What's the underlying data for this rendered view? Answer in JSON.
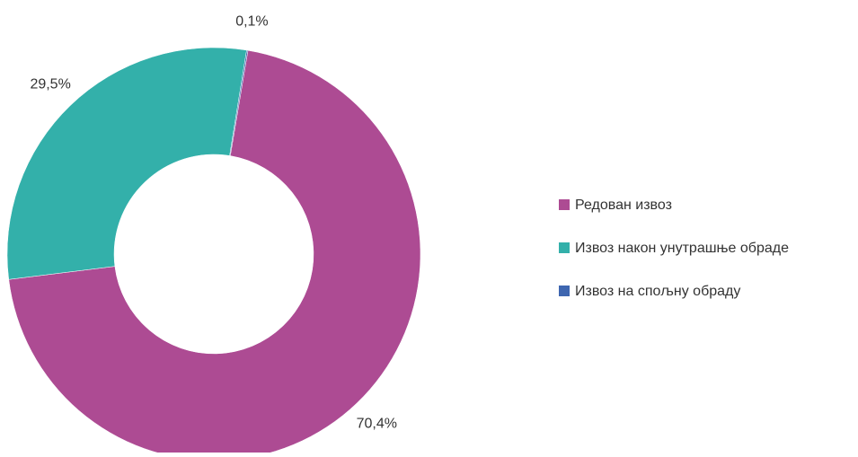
{
  "chart_data": {
    "type": "pie",
    "categories": [
      "Редован извоз",
      "Извоз након унутрашње обраде",
      "Извоз на спољну обраду"
    ],
    "values": [
      70.4,
      29.5,
      0.1
    ],
    "value_labels": [
      "70,4%",
      "29,5%",
      "0,1%"
    ],
    "colors": [
      "#ad4b93",
      "#33b0aa",
      "#3e66b0"
    ],
    "legend": "right"
  }
}
